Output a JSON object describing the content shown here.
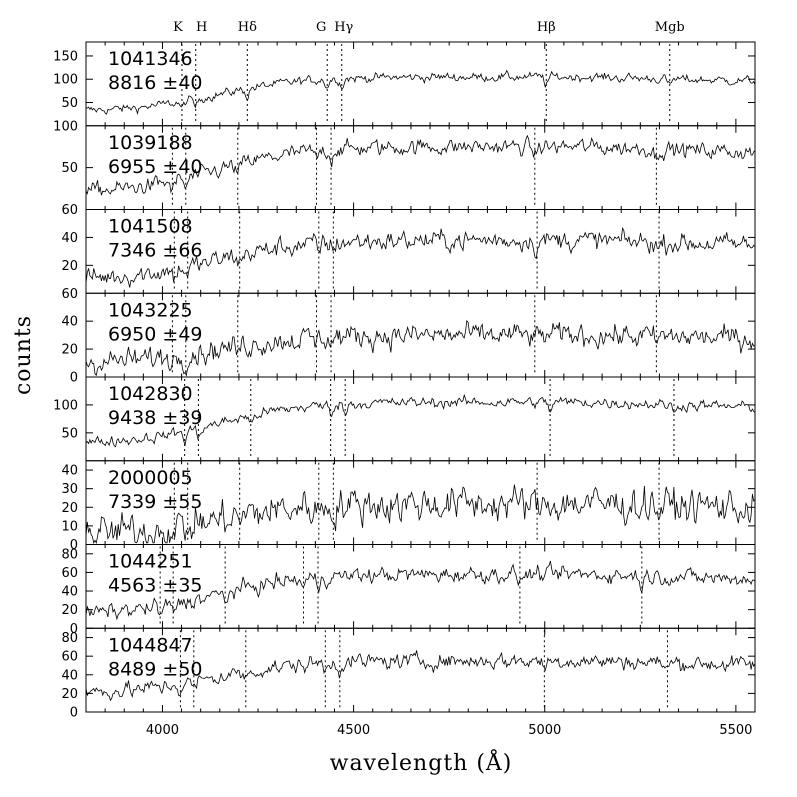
{
  "chart_data": {
    "type": "line",
    "xlabel": "wavelength (Å)",
    "ylabel": "counts",
    "xlim": [
      3800,
      5550
    ],
    "x_tick_labels": [
      4000,
      4500,
      5000,
      5500
    ],
    "spectral_lines": [
      {
        "label": "K",
        "rest": 3934
      },
      {
        "label": "H",
        "rest": 3969
      },
      {
        "label": "Hδ",
        "rest": 4102
      },
      {
        "label": "G",
        "rest": 4304
      },
      {
        "label": "Hγ",
        "rest": 4341
      },
      {
        "label": "Hβ",
        "rest": 4861
      },
      {
        "label": "Mgb",
        "rest": 5175
      }
    ],
    "series": [
      {
        "name": "1041346",
        "velocity": "8816",
        "error": "±40",
        "ylim": [
          0,
          180
        ],
        "yticks": [
          50,
          100,
          150
        ],
        "top_label": "",
        "baseline": 30,
        "plateau": 105,
        "noise": 8,
        "line_positions": [
          4051,
          4087,
          4222,
          4431,
          4469,
          5004,
          5327
        ]
      },
      {
        "name": "1039188",
        "velocity": "6955",
        "error": "±40",
        "ylim": [
          0,
          100
        ],
        "yticks": [
          50
        ],
        "top_label": "100",
        "baseline": 20,
        "plateau": 75,
        "noise": 8,
        "line_positions": [
          4026,
          4061,
          4197,
          4403,
          4441,
          4974,
          5292
        ]
      },
      {
        "name": "1041508",
        "velocity": "7346",
        "error": "±66",
        "ylim": [
          0,
          60
        ],
        "yticks": [
          20,
          40
        ],
        "top_label": "60",
        "baseline": 10,
        "plateau": 38,
        "noise": 6,
        "line_positions": [
          4031,
          4066,
          4202,
          4409,
          4447,
          4980,
          5299
        ]
      },
      {
        "name": "1043225",
        "velocity": "6950",
        "error": "±49",
        "ylim": [
          0,
          60
        ],
        "yticks": [
          0,
          20,
          40
        ],
        "top_label": "60",
        "baseline": 10,
        "plateau": 30,
        "noise": 7,
        "line_positions": [
          4026,
          4061,
          4197,
          4403,
          4441,
          4974,
          5292
        ]
      },
      {
        "name": "1042830",
        "velocity": "9438",
        "error": "±39",
        "ylim": [
          0,
          150
        ],
        "yticks": [
          50,
          100
        ],
        "top_label": "",
        "baseline": 30,
        "plateau": 105,
        "noise": 8,
        "line_positions": [
          4058,
          4094,
          4231,
          4440,
          4478,
          5014,
          5338
        ]
      },
      {
        "name": "2000005",
        "velocity": "7339",
        "error": "±55",
        "ylim": [
          0,
          45
        ],
        "yticks": [
          0,
          10,
          20,
          30,
          40
        ],
        "top_label": "",
        "baseline": 5,
        "plateau": 22,
        "noise": 8,
        "line_positions": [
          4031,
          4066,
          4202,
          4409,
          4447,
          4980,
          5299
        ]
      },
      {
        "name": "1044251",
        "velocity": "4563",
        "error": "±35",
        "ylim": [
          0,
          90
        ],
        "yticks": [
          0,
          20,
          40,
          60,
          80
        ],
        "top_label": "",
        "baseline": 15,
        "plateau": 58,
        "noise": 7,
        "line_positions": [
          3994,
          4028,
          4164,
          4369,
          4407,
          4935,
          5254
        ]
      },
      {
        "name": "1044847",
        "velocity": "8489",
        "error": "±50",
        "ylim": [
          0,
          90
        ],
        "yticks": [
          0,
          20,
          40,
          60,
          80
        ],
        "top_label": "",
        "baseline": 20,
        "plateau": 55,
        "noise": 7,
        "line_positions": [
          4047,
          4082,
          4218,
          4426,
          4464,
          4999,
          5321
        ]
      }
    ]
  }
}
